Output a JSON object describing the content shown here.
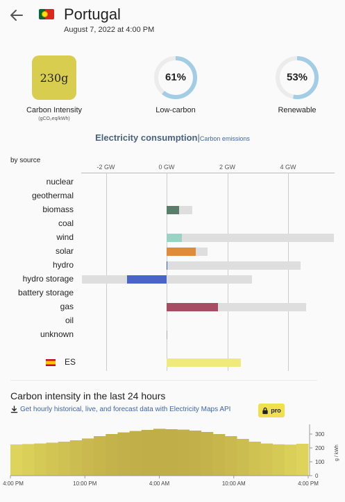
{
  "header": {
    "title": "Portugal",
    "datetime": "August 7, 2022 at 4:00 PM"
  },
  "metrics": {
    "carbon_intensity": {
      "value": "230g",
      "label": "Carbon Intensity",
      "unit": "(gCO₂eq/kWh)",
      "color": "#d9cd50"
    },
    "low_carbon": {
      "value": "61%",
      "label": "Low-carbon",
      "fraction": 0.61
    },
    "renewable": {
      "value": "53%",
      "label": "Renewable",
      "fraction": 0.53
    },
    "ring_color": "#a3cde4",
    "ring_bg": "#ececec"
  },
  "tabs": {
    "active": "Electricity consumption",
    "separator": "|",
    "inactive": "Carbon emissions"
  },
  "breakdown": {
    "by_source": "by source",
    "axis_ticks": [
      "-2 GW",
      "0 GW",
      "2 GW",
      "4 GW"
    ],
    "axis_values": [
      -2,
      0,
      2,
      4
    ],
    "sources": [
      {
        "name": "nuclear",
        "value": 0,
        "capacity": 0,
        "color": "#ae486c"
      },
      {
        "name": "geothermal",
        "value": 0,
        "capacity": 0,
        "color": "#f5b300"
      },
      {
        "name": "biomass",
        "value": 0.4,
        "capacity": 0.85,
        "color": "#5b7e6c"
      },
      {
        "name": "coal",
        "value": 0,
        "capacity": 0,
        "color": "#8b6d4b"
      },
      {
        "name": "wind",
        "value": 0.5,
        "capacity": 5.5,
        "color": "#9ad2c3"
      },
      {
        "name": "solar",
        "value": 0.95,
        "capacity": 1.35,
        "color": "#e08b3a"
      },
      {
        "name": "hydro",
        "value": 0.03,
        "capacity": 4.4,
        "color": "#2b5fa8"
      },
      {
        "name": "hydro storage",
        "value": -1.3,
        "capacity_min": -2.8,
        "capacity": 2.8,
        "color": "#4b64c8"
      },
      {
        "name": "battery storage",
        "value": 0,
        "capacity": 0,
        "color": "#4b64c8"
      },
      {
        "name": "gas",
        "value": 1.7,
        "capacity": 4.6,
        "color": "#a84c63"
      },
      {
        "name": "oil",
        "value": 0,
        "capacity": 0,
        "color": "#867d66"
      },
      {
        "name": "unknown",
        "value": 0.01,
        "capacity": 0.01,
        "color": "#aaaaaa"
      }
    ],
    "exchanges": [
      {
        "name": "ES",
        "value": 2.45,
        "color": "#f0e97b"
      }
    ]
  },
  "history": {
    "title": "Carbon intensity in the last 24 hours",
    "api_link": "Get hourly historical, live, and forecast data with Electricity Maps API",
    "pro_badge": "pro",
    "y_ticks": [
      "300",
      "200",
      "100",
      "0"
    ],
    "y_values": [
      300,
      200,
      100,
      0
    ],
    "y_unit": "g / kWh",
    "x_ticks": [
      "4:00 PM",
      "10:00 PM",
      "4:00 AM",
      "10:00 AM",
      "4:00 PM"
    ],
    "color": "#d2c24a"
  },
  "chart_data": {
    "type": "area",
    "title": "Carbon intensity in the last 24 hours",
    "ylabel": "g / kWh",
    "ylim": [
      0,
      350
    ],
    "x": [
      "4PM",
      "5PM",
      "6PM",
      "7PM",
      "8PM",
      "9PM",
      "10PM",
      "11PM",
      "12AM",
      "1AM",
      "2AM",
      "3AM",
      "4AM",
      "5AM",
      "6AM",
      "7AM",
      "8AM",
      "9AM",
      "10AM",
      "11AM",
      "12PM",
      "1PM",
      "2PM",
      "3PM",
      "4PM"
    ],
    "values": [
      225,
      228,
      232,
      238,
      245,
      255,
      268,
      285,
      300,
      312,
      322,
      330,
      338,
      335,
      332,
      325,
      315,
      300,
      285,
      265,
      245,
      232,
      226,
      224,
      230
    ]
  }
}
